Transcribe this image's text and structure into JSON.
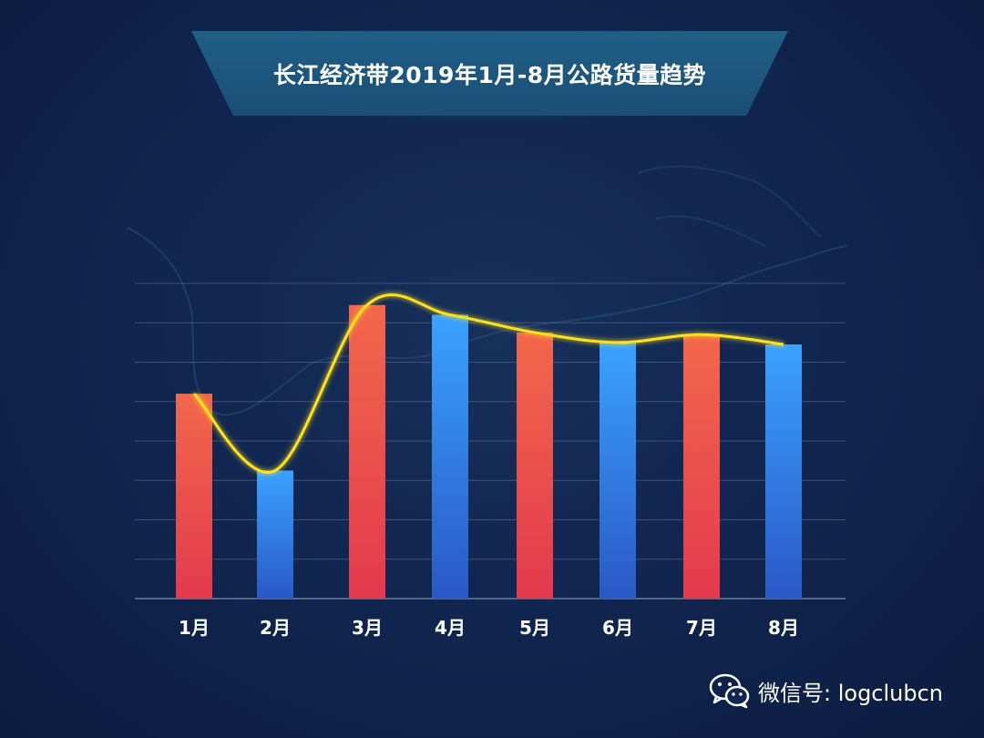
{
  "title": "长江经济带2019年1月-8月公路货量趋势",
  "watermark": {
    "text": "微信号: logclubcn",
    "icon": "wechat-icon"
  },
  "colors": {
    "bar_red_top": "#f2674b",
    "bar_red_bottom": "#e33a4e",
    "bar_blue_top": "#3aa2ff",
    "bar_blue_bottom": "#2a58c6",
    "trend_line": "#ffe21a",
    "grid": "#5a6e8e",
    "axis_label": "#ffffff"
  },
  "chart_data": {
    "type": "bar",
    "categories": [
      "1月",
      "2月",
      "3月",
      "4月",
      "5月",
      "6月",
      "7月",
      "8月"
    ],
    "values": [
      5.2,
      3.25,
      7.45,
      7.2,
      6.75,
      6.5,
      6.7,
      6.45
    ],
    "bar_colors": [
      "red",
      "blue",
      "red",
      "blue",
      "red",
      "blue",
      "red",
      "blue"
    ],
    "trend_line": true,
    "ylim": [
      0,
      8
    ],
    "grid": true,
    "y_tick_labels_shown": false
  }
}
